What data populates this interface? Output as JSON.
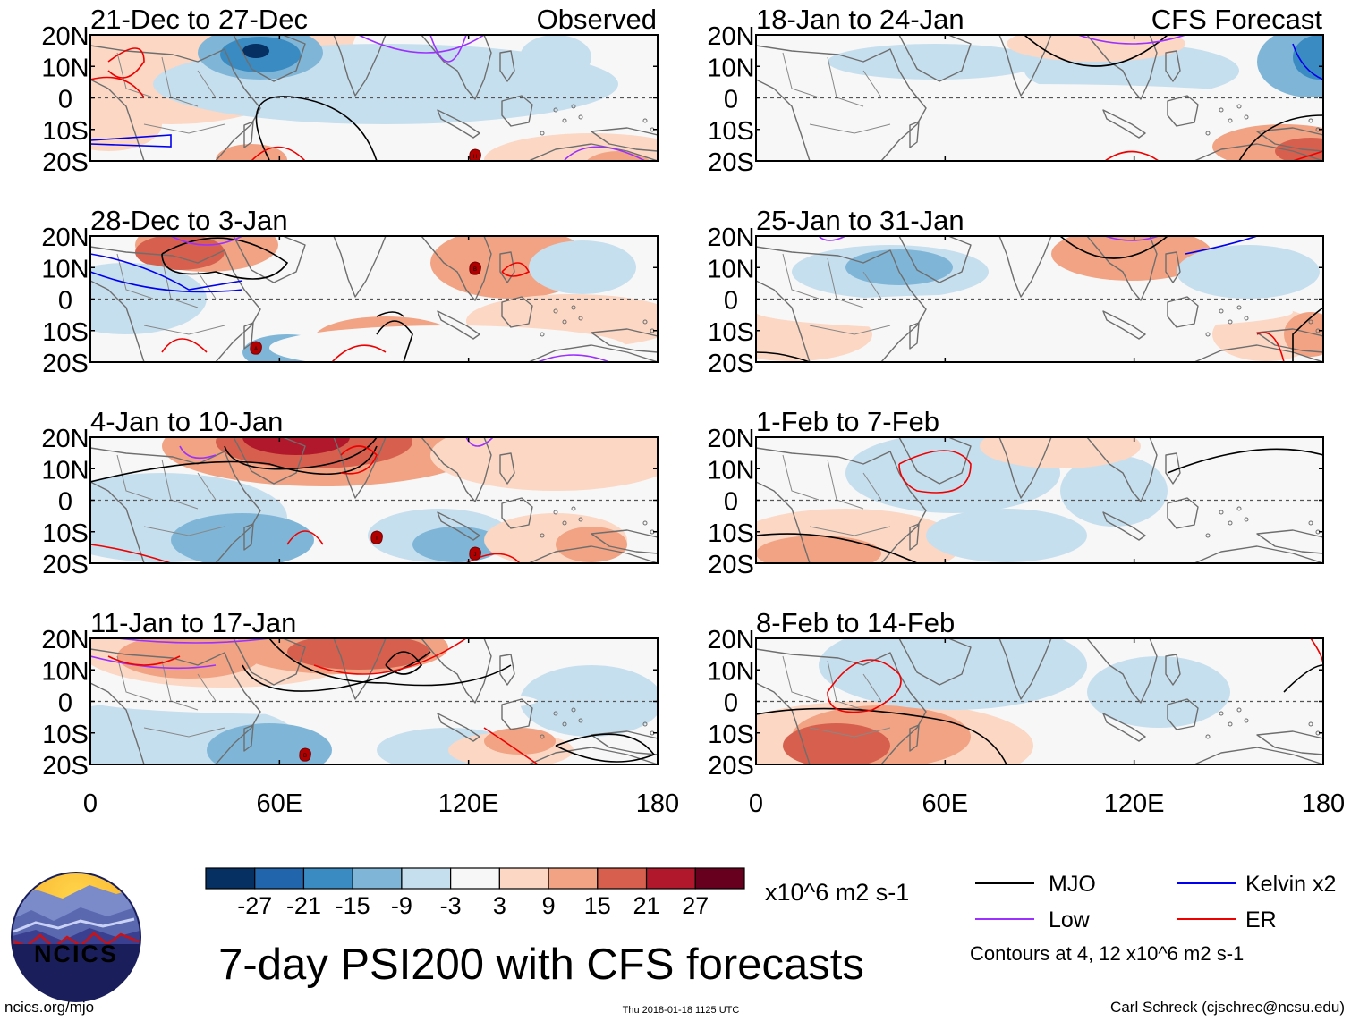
{
  "chart_data": {
    "type": "heatmap",
    "title": "7-day PSI200 with CFS forecasts",
    "columns": [
      {
        "panels": [
          {
            "period": "21-Dec to 27-Dec",
            "tag": "Observed"
          },
          {
            "period": "28-Dec to 3-Jan",
            "tag": ""
          },
          {
            "period": "4-Jan to 10-Jan",
            "tag": ""
          },
          {
            "period": "11-Jan to 17-Jan",
            "tag": ""
          }
        ]
      },
      {
        "panels": [
          {
            "period": "18-Jan to 24-Jan",
            "tag": "CFS Forecast"
          },
          {
            "period": "25-Jan to 31-Jan",
            "tag": ""
          },
          {
            "period": "1-Feb to 7-Feb",
            "tag": ""
          },
          {
            "period": "8-Feb to 14-Feb",
            "tag": ""
          }
        ]
      }
    ],
    "y_ticks": [
      "20N",
      "10N",
      "0",
      "10S",
      "20S"
    ],
    "y_values": [
      20,
      10,
      0,
      -10,
      -20
    ],
    "x_ticks": [
      "0",
      "60E",
      "120E",
      "180"
    ],
    "x_values": [
      0,
      60,
      120,
      180
    ],
    "xlim": [
      0,
      180
    ],
    "ylim": [
      -20,
      20
    ],
    "colorbar": {
      "labels": [
        "-27",
        "-21",
        "-15",
        "-9",
        "-3",
        "3",
        "9",
        "15",
        "21",
        "27"
      ],
      "colors": [
        "#053061",
        "#2166ac",
        "#3a8bc2",
        "#7fb6d8",
        "#c6dfee",
        "#f7f7f7",
        "#fbd7c4",
        "#f1a383",
        "#d6604d",
        "#b2182b",
        "#67001f"
      ],
      "units": "x10^6 m2 s-1"
    },
    "legend": [
      {
        "label": "MJO",
        "color": "#000000"
      },
      {
        "label": "Kelvin x2",
        "color": "#0000ee"
      },
      {
        "label": "Low",
        "color": "#9b30ff"
      },
      {
        "label": "ER",
        "color": "#ee0000"
      }
    ],
    "contour_note": "Contours at 4, 12 x10^6 m2 s-1"
  },
  "footer": {
    "logo_text": "NCICS",
    "url": "ncics.org/mjo",
    "timestamp": "Thu 2018-01-18 1125 UTC",
    "author": "Carl Schreck (cjschrec@ncsu.edu)"
  }
}
